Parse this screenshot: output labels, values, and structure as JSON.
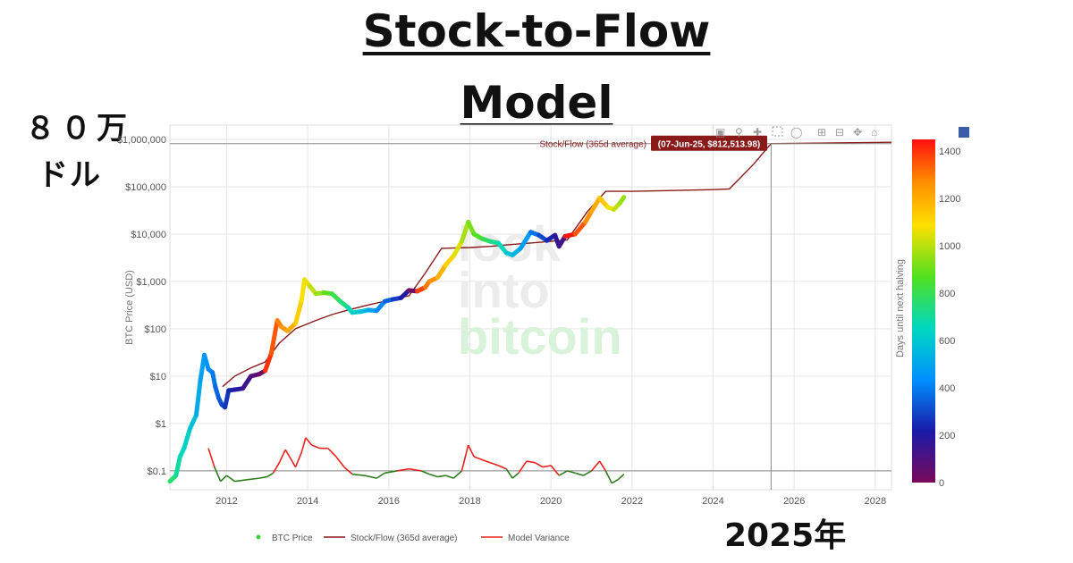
{
  "header": {
    "title_line1": "Stock-to-Flow",
    "title_line2": "Model"
  },
  "annotations": {
    "price_line1": "８０万",
    "price_line2": "ドル",
    "year": "2025年"
  },
  "chart_data": {
    "type": "line",
    "title": "",
    "xlabel": "",
    "ylabel": "BTC Price (USD)",
    "y_scale": "log",
    "xlim": [
      2010.6,
      2028.4
    ],
    "ylim": [
      0.04,
      2000000
    ],
    "x_ticks": [
      "2012",
      "2014",
      "2016",
      "2018",
      "2020",
      "2022",
      "2024",
      "2026",
      "2028"
    ],
    "y_ticks": [
      "$0.1",
      "$1",
      "$10",
      "$100",
      "$1,000",
      "$10,000",
      "$100,000",
      "$1,000,000"
    ],
    "y_tick_values": [
      0.1,
      1,
      10,
      100,
      1000,
      10000,
      100000,
      1000000
    ],
    "grid": true,
    "watermark": [
      "look",
      "into",
      "bitcoin"
    ],
    "tooltip": {
      "series": "Stock/Flow (365d average)",
      "label": "(07-Jun-25, $812,513.98)",
      "x": 2025.43,
      "y": 812513.98
    },
    "colorbar": {
      "title": "Days until next halving",
      "ticks": [
        "0",
        "200",
        "400",
        "600",
        "800",
        "1000",
        "1200",
        "1400"
      ],
      "tick_values": [
        0,
        200,
        400,
        600,
        800,
        1000,
        1200,
        1400
      ],
      "max": 1450
    },
    "legend": {
      "position": "bottom",
      "items": [
        "BTC Price",
        "Stock/Flow (365d average)",
        "Model Variance"
      ]
    },
    "series": [
      {
        "name": "BTC Price",
        "colors": {
          "0": "#7a0a5a",
          "0.15": "#1a1aa8",
          "0.3": "#0090ff",
          "0.45": "#00d8c0",
          "0.6": "#50e020",
          "0.75": "#ffe000",
          "0.88": "#ff8a00",
          "1": "#ff1010"
        },
        "points": [
          {
            "x": 2010.6,
            "y": 0.06,
            "d": 760
          },
          {
            "x": 2010.75,
            "y": 0.08,
            "d": 700
          },
          {
            "x": 2010.85,
            "y": 0.2,
            "d": 660
          },
          {
            "x": 2010.95,
            "y": 0.3,
            "d": 630
          },
          {
            "x": 2011.1,
            "y": 0.8,
            "d": 580
          },
          {
            "x": 2011.25,
            "y": 1.5,
            "d": 520
          },
          {
            "x": 2011.35,
            "y": 8,
            "d": 480
          },
          {
            "x": 2011.45,
            "y": 28,
            "d": 450
          },
          {
            "x": 2011.55,
            "y": 14,
            "d": 420
          },
          {
            "x": 2011.65,
            "y": 12,
            "d": 390
          },
          {
            "x": 2011.72,
            "y": 6,
            "d": 360
          },
          {
            "x": 2011.8,
            "y": 3.5,
            "d": 330
          },
          {
            "x": 2011.88,
            "y": 2.5,
            "d": 300
          },
          {
            "x": 2011.96,
            "y": 2.2,
            "d": 270
          },
          {
            "x": 2012.05,
            "y": 5,
            "d": 240
          },
          {
            "x": 2012.2,
            "y": 5.2,
            "d": 190
          },
          {
            "x": 2012.4,
            "y": 5.5,
            "d": 140
          },
          {
            "x": 2012.6,
            "y": 10,
            "d": 80
          },
          {
            "x": 2012.8,
            "y": 11,
            "d": 30
          },
          {
            "x": 2012.95,
            "y": 13,
            "d": 1400
          },
          {
            "x": 2013.1,
            "y": 30,
            "d": 1350
          },
          {
            "x": 2013.25,
            "y": 150,
            "d": 1290
          },
          {
            "x": 2013.35,
            "y": 110,
            "d": 1250
          },
          {
            "x": 2013.5,
            "y": 90,
            "d": 1200
          },
          {
            "x": 2013.7,
            "y": 130,
            "d": 1130
          },
          {
            "x": 2013.85,
            "y": 400,
            "d": 1080
          },
          {
            "x": 2013.92,
            "y": 1100,
            "d": 1060
          },
          {
            "x": 2014.05,
            "y": 800,
            "d": 1010
          },
          {
            "x": 2014.2,
            "y": 550,
            "d": 960
          },
          {
            "x": 2014.4,
            "y": 580,
            "d": 880
          },
          {
            "x": 2014.6,
            "y": 550,
            "d": 810
          },
          {
            "x": 2014.8,
            "y": 380,
            "d": 740
          },
          {
            "x": 2015.0,
            "y": 280,
            "d": 670
          },
          {
            "x": 2015.1,
            "y": 220,
            "d": 630
          },
          {
            "x": 2015.3,
            "y": 230,
            "d": 560
          },
          {
            "x": 2015.5,
            "y": 250,
            "d": 490
          },
          {
            "x": 2015.7,
            "y": 240,
            "d": 420
          },
          {
            "x": 2015.9,
            "y": 380,
            "d": 350
          },
          {
            "x": 2016.1,
            "y": 420,
            "d": 280
          },
          {
            "x": 2016.3,
            "y": 450,
            "d": 200
          },
          {
            "x": 2016.5,
            "y": 650,
            "d": 30
          },
          {
            "x": 2016.7,
            "y": 620,
            "d": 1380
          },
          {
            "x": 2016.9,
            "y": 750,
            "d": 1300
          },
          {
            "x": 2017.0,
            "y": 1000,
            "d": 1260
          },
          {
            "x": 2017.2,
            "y": 1200,
            "d": 1190
          },
          {
            "x": 2017.4,
            "y": 2200,
            "d": 1120
          },
          {
            "x": 2017.6,
            "y": 3500,
            "d": 1050
          },
          {
            "x": 2017.8,
            "y": 7000,
            "d": 980
          },
          {
            "x": 2017.96,
            "y": 18000,
            "d": 920
          },
          {
            "x": 2018.1,
            "y": 10000,
            "d": 870
          },
          {
            "x": 2018.3,
            "y": 8000,
            "d": 800
          },
          {
            "x": 2018.5,
            "y": 7000,
            "d": 730
          },
          {
            "x": 2018.7,
            "y": 6500,
            "d": 660
          },
          {
            "x": 2018.9,
            "y": 4000,
            "d": 590
          },
          {
            "x": 2019.05,
            "y": 3600,
            "d": 540
          },
          {
            "x": 2019.25,
            "y": 5000,
            "d": 470
          },
          {
            "x": 2019.5,
            "y": 11000,
            "d": 380
          },
          {
            "x": 2019.7,
            "y": 9500,
            "d": 310
          },
          {
            "x": 2019.9,
            "y": 7300,
            "d": 240
          },
          {
            "x": 2020.1,
            "y": 9500,
            "d": 170
          },
          {
            "x": 2020.2,
            "y": 5500,
            "d": 130
          },
          {
            "x": 2020.35,
            "y": 9000,
            "d": 1440
          },
          {
            "x": 2020.6,
            "y": 10000,
            "d": 1350
          },
          {
            "x": 2020.85,
            "y": 18000,
            "d": 1260
          },
          {
            "x": 2021.0,
            "y": 30000,
            "d": 1210
          },
          {
            "x": 2021.2,
            "y": 58000,
            "d": 1140
          },
          {
            "x": 2021.4,
            "y": 37000,
            "d": 1070
          },
          {
            "x": 2021.55,
            "y": 33000,
            "d": 1010
          },
          {
            "x": 2021.7,
            "y": 45000,
            "d": 960
          },
          {
            "x": 2021.8,
            "y": 60000,
            "d": 920
          }
        ]
      },
      {
        "name": "Stock/Flow (365d average)",
        "color": "#8a1a1a",
        "points": [
          {
            "x": 2011.9,
            "y": 6
          },
          {
            "x": 2012.2,
            "y": 10
          },
          {
            "x": 2012.6,
            "y": 15
          },
          {
            "x": 2012.95,
            "y": 20
          },
          {
            "x": 2013.3,
            "y": 50
          },
          {
            "x": 2013.7,
            "y": 100
          },
          {
            "x": 2014.2,
            "y": 150
          },
          {
            "x": 2014.6,
            "y": 200
          },
          {
            "x": 2015.0,
            "y": 250
          },
          {
            "x": 2015.5,
            "y": 320
          },
          {
            "x": 2016.0,
            "y": 400
          },
          {
            "x": 2016.5,
            "y": 500
          },
          {
            "x": 2016.9,
            "y": 1500
          },
          {
            "x": 2017.3,
            "y": 5000
          },
          {
            "x": 2018.0,
            "y": 5200
          },
          {
            "x": 2018.5,
            "y": 5500
          },
          {
            "x": 2019.0,
            "y": 6000
          },
          {
            "x": 2019.5,
            "y": 6500
          },
          {
            "x": 2020.0,
            "y": 7000
          },
          {
            "x": 2020.4,
            "y": 7500
          },
          {
            "x": 2020.9,
            "y": 30000
          },
          {
            "x": 2021.35,
            "y": 80000
          },
          {
            "x": 2022.0,
            "y": 80000
          },
          {
            "x": 2023.0,
            "y": 83000
          },
          {
            "x": 2024.0,
            "y": 87000
          },
          {
            "x": 2024.4,
            "y": 90000
          },
          {
            "x": 2025.0,
            "y": 300000
          },
          {
            "x": 2025.43,
            "y": 812513.98
          },
          {
            "x": 2026.5,
            "y": 830000
          },
          {
            "x": 2028.4,
            "y": 870000
          }
        ]
      },
      {
        "name": "Model Variance",
        "color_above": "#e8231f",
        "color_below": "#2e7d1e",
        "baseline": 0.1,
        "points": [
          {
            "x": 2011.55,
            "y": 0.3
          },
          {
            "x": 2011.7,
            "y": 0.12
          },
          {
            "x": 2011.85,
            "y": 0.06
          },
          {
            "x": 2012.0,
            "y": 0.08
          },
          {
            "x": 2012.2,
            "y": 0.06
          },
          {
            "x": 2012.5,
            "y": 0.065
          },
          {
            "x": 2012.8,
            "y": 0.07
          },
          {
            "x": 2013.0,
            "y": 0.075
          },
          {
            "x": 2013.15,
            "y": 0.09
          },
          {
            "x": 2013.3,
            "y": 0.15
          },
          {
            "x": 2013.45,
            "y": 0.28
          },
          {
            "x": 2013.55,
            "y": 0.2
          },
          {
            "x": 2013.7,
            "y": 0.12
          },
          {
            "x": 2013.85,
            "y": 0.25
          },
          {
            "x": 2013.95,
            "y": 0.5
          },
          {
            "x": 2014.1,
            "y": 0.35
          },
          {
            "x": 2014.3,
            "y": 0.3
          },
          {
            "x": 2014.5,
            "y": 0.3
          },
          {
            "x": 2014.7,
            "y": 0.2
          },
          {
            "x": 2014.9,
            "y": 0.12
          },
          {
            "x": 2015.1,
            "y": 0.085
          },
          {
            "x": 2015.4,
            "y": 0.08
          },
          {
            "x": 2015.7,
            "y": 0.07
          },
          {
            "x": 2015.9,
            "y": 0.09
          },
          {
            "x": 2016.2,
            "y": 0.1
          },
          {
            "x": 2016.5,
            "y": 0.11
          },
          {
            "x": 2016.8,
            "y": 0.1
          },
          {
            "x": 2017.0,
            "y": 0.085
          },
          {
            "x": 2017.2,
            "y": 0.075
          },
          {
            "x": 2017.4,
            "y": 0.08
          },
          {
            "x": 2017.6,
            "y": 0.07
          },
          {
            "x": 2017.8,
            "y": 0.1
          },
          {
            "x": 2017.96,
            "y": 0.35
          },
          {
            "x": 2018.1,
            "y": 0.2
          },
          {
            "x": 2018.4,
            "y": 0.16
          },
          {
            "x": 2018.7,
            "y": 0.13
          },
          {
            "x": 2018.9,
            "y": 0.11
          },
          {
            "x": 2019.05,
            "y": 0.07
          },
          {
            "x": 2019.2,
            "y": 0.09
          },
          {
            "x": 2019.4,
            "y": 0.16
          },
          {
            "x": 2019.6,
            "y": 0.15
          },
          {
            "x": 2019.8,
            "y": 0.12
          },
          {
            "x": 2020.0,
            "y": 0.13
          },
          {
            "x": 2020.2,
            "y": 0.08
          },
          {
            "x": 2020.4,
            "y": 0.1
          },
          {
            "x": 2020.6,
            "y": 0.09
          },
          {
            "x": 2020.8,
            "y": 0.08
          },
          {
            "x": 2021.0,
            "y": 0.1
          },
          {
            "x": 2021.2,
            "y": 0.16
          },
          {
            "x": 2021.35,
            "y": 0.1
          },
          {
            "x": 2021.5,
            "y": 0.055
          },
          {
            "x": 2021.65,
            "y": 0.065
          },
          {
            "x": 2021.8,
            "y": 0.085
          }
        ]
      }
    ]
  }
}
